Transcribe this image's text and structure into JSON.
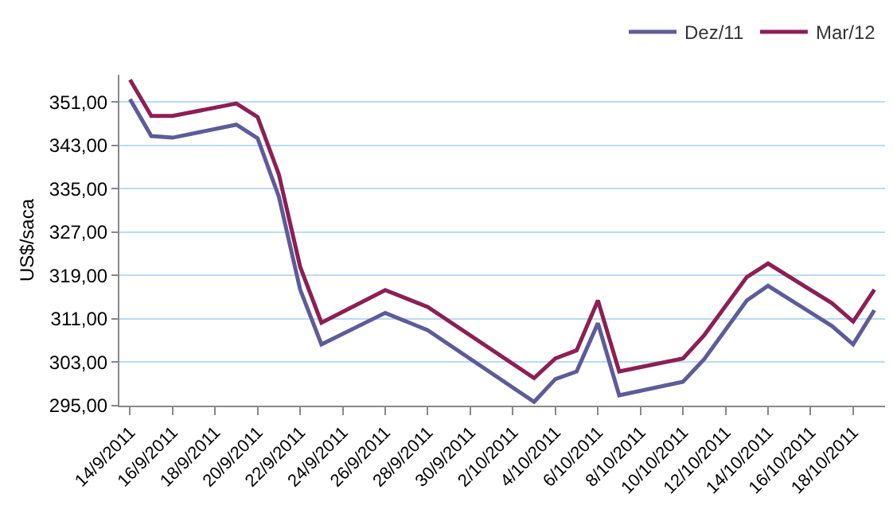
{
  "chart_data": {
    "type": "line",
    "ylabel": "US$/saca",
    "x": [
      "2011-09-14",
      "2011-09-15",
      "2011-09-16",
      "2011-09-19",
      "2011-09-20",
      "2011-09-21",
      "2011-09-22",
      "2011-09-23",
      "2011-09-26",
      "2011-09-28",
      "2011-10-03",
      "2011-10-04",
      "2011-10-05",
      "2011-10-06",
      "2011-10-07",
      "2011-10-10",
      "2011-10-11",
      "2011-10-13",
      "2011-10-14",
      "2011-10-17",
      "2011-10-18",
      "2011-10-19"
    ],
    "series": [
      {
        "name": "Dez/11",
        "color": "#5e5b99",
        "values": [
          351.5,
          344.7,
          344.4,
          346.8,
          344.3,
          333.5,
          316.4,
          306.3,
          312.1,
          308.9,
          295.7,
          299.9,
          301.3,
          310.2,
          296.9,
          299.4,
          303.6,
          314.4,
          317.1,
          309.7,
          306.3,
          312.6
        ]
      },
      {
        "name": "Mar/12",
        "color": "#8c1f55",
        "values": [
          355.1,
          348.4,
          348.4,
          350.7,
          348.2,
          337.6,
          320.6,
          310.3,
          316.3,
          313.2,
          300.1,
          303.7,
          305.2,
          314.4,
          301.3,
          303.7,
          308.0,
          318.7,
          321.2,
          313.9,
          310.5,
          316.4
        ]
      }
    ],
    "xlim": [
      "2011-09-13T12:00",
      "2011-10-19T12:00"
    ],
    "xticks": [
      {
        "value": "2011-09-14",
        "label": "14/9/2011"
      },
      {
        "value": "2011-09-16",
        "label": "16/9/2011"
      },
      {
        "value": "2011-09-18",
        "label": "18/9/2011"
      },
      {
        "value": "2011-09-20",
        "label": "20/9/2011"
      },
      {
        "value": "2011-09-22",
        "label": "22/9/2011"
      },
      {
        "value": "2011-09-24",
        "label": "24/9/2011"
      },
      {
        "value": "2011-09-26",
        "label": "26/9/2011"
      },
      {
        "value": "2011-09-28",
        "label": "28/9/2011"
      },
      {
        "value": "2011-09-30",
        "label": "30/9/2011"
      },
      {
        "value": "2011-10-02",
        "label": "2/10/2011"
      },
      {
        "value": "2011-10-04",
        "label": "4/10/2011"
      },
      {
        "value": "2011-10-06",
        "label": "6/10/2011"
      },
      {
        "value": "2011-10-08",
        "label": "8/10/2011"
      },
      {
        "value": "2011-10-10",
        "label": "10/10/2011"
      },
      {
        "value": "2011-10-12",
        "label": "12/10/2011"
      },
      {
        "value": "2011-10-14",
        "label": "14/10/2011"
      },
      {
        "value": "2011-10-16",
        "label": "16/10/2011"
      },
      {
        "value": "2011-10-18",
        "label": "18/10/2011"
      }
    ],
    "ylim": [
      295,
      356
    ],
    "yticks": [
      {
        "value": 295,
        "label": "295,00"
      },
      {
        "value": 303,
        "label": "303,00"
      },
      {
        "value": 311,
        "label": "311,00"
      },
      {
        "value": 319,
        "label": "319,00"
      },
      {
        "value": 327,
        "label": "327,00"
      },
      {
        "value": 335,
        "label": "335,00"
      },
      {
        "value": 343,
        "label": "343,00"
      },
      {
        "value": 351,
        "label": "351,00"
      }
    ],
    "grid": "y",
    "legend": "top right",
    "marker": "none",
    "line_style": "solid"
  }
}
